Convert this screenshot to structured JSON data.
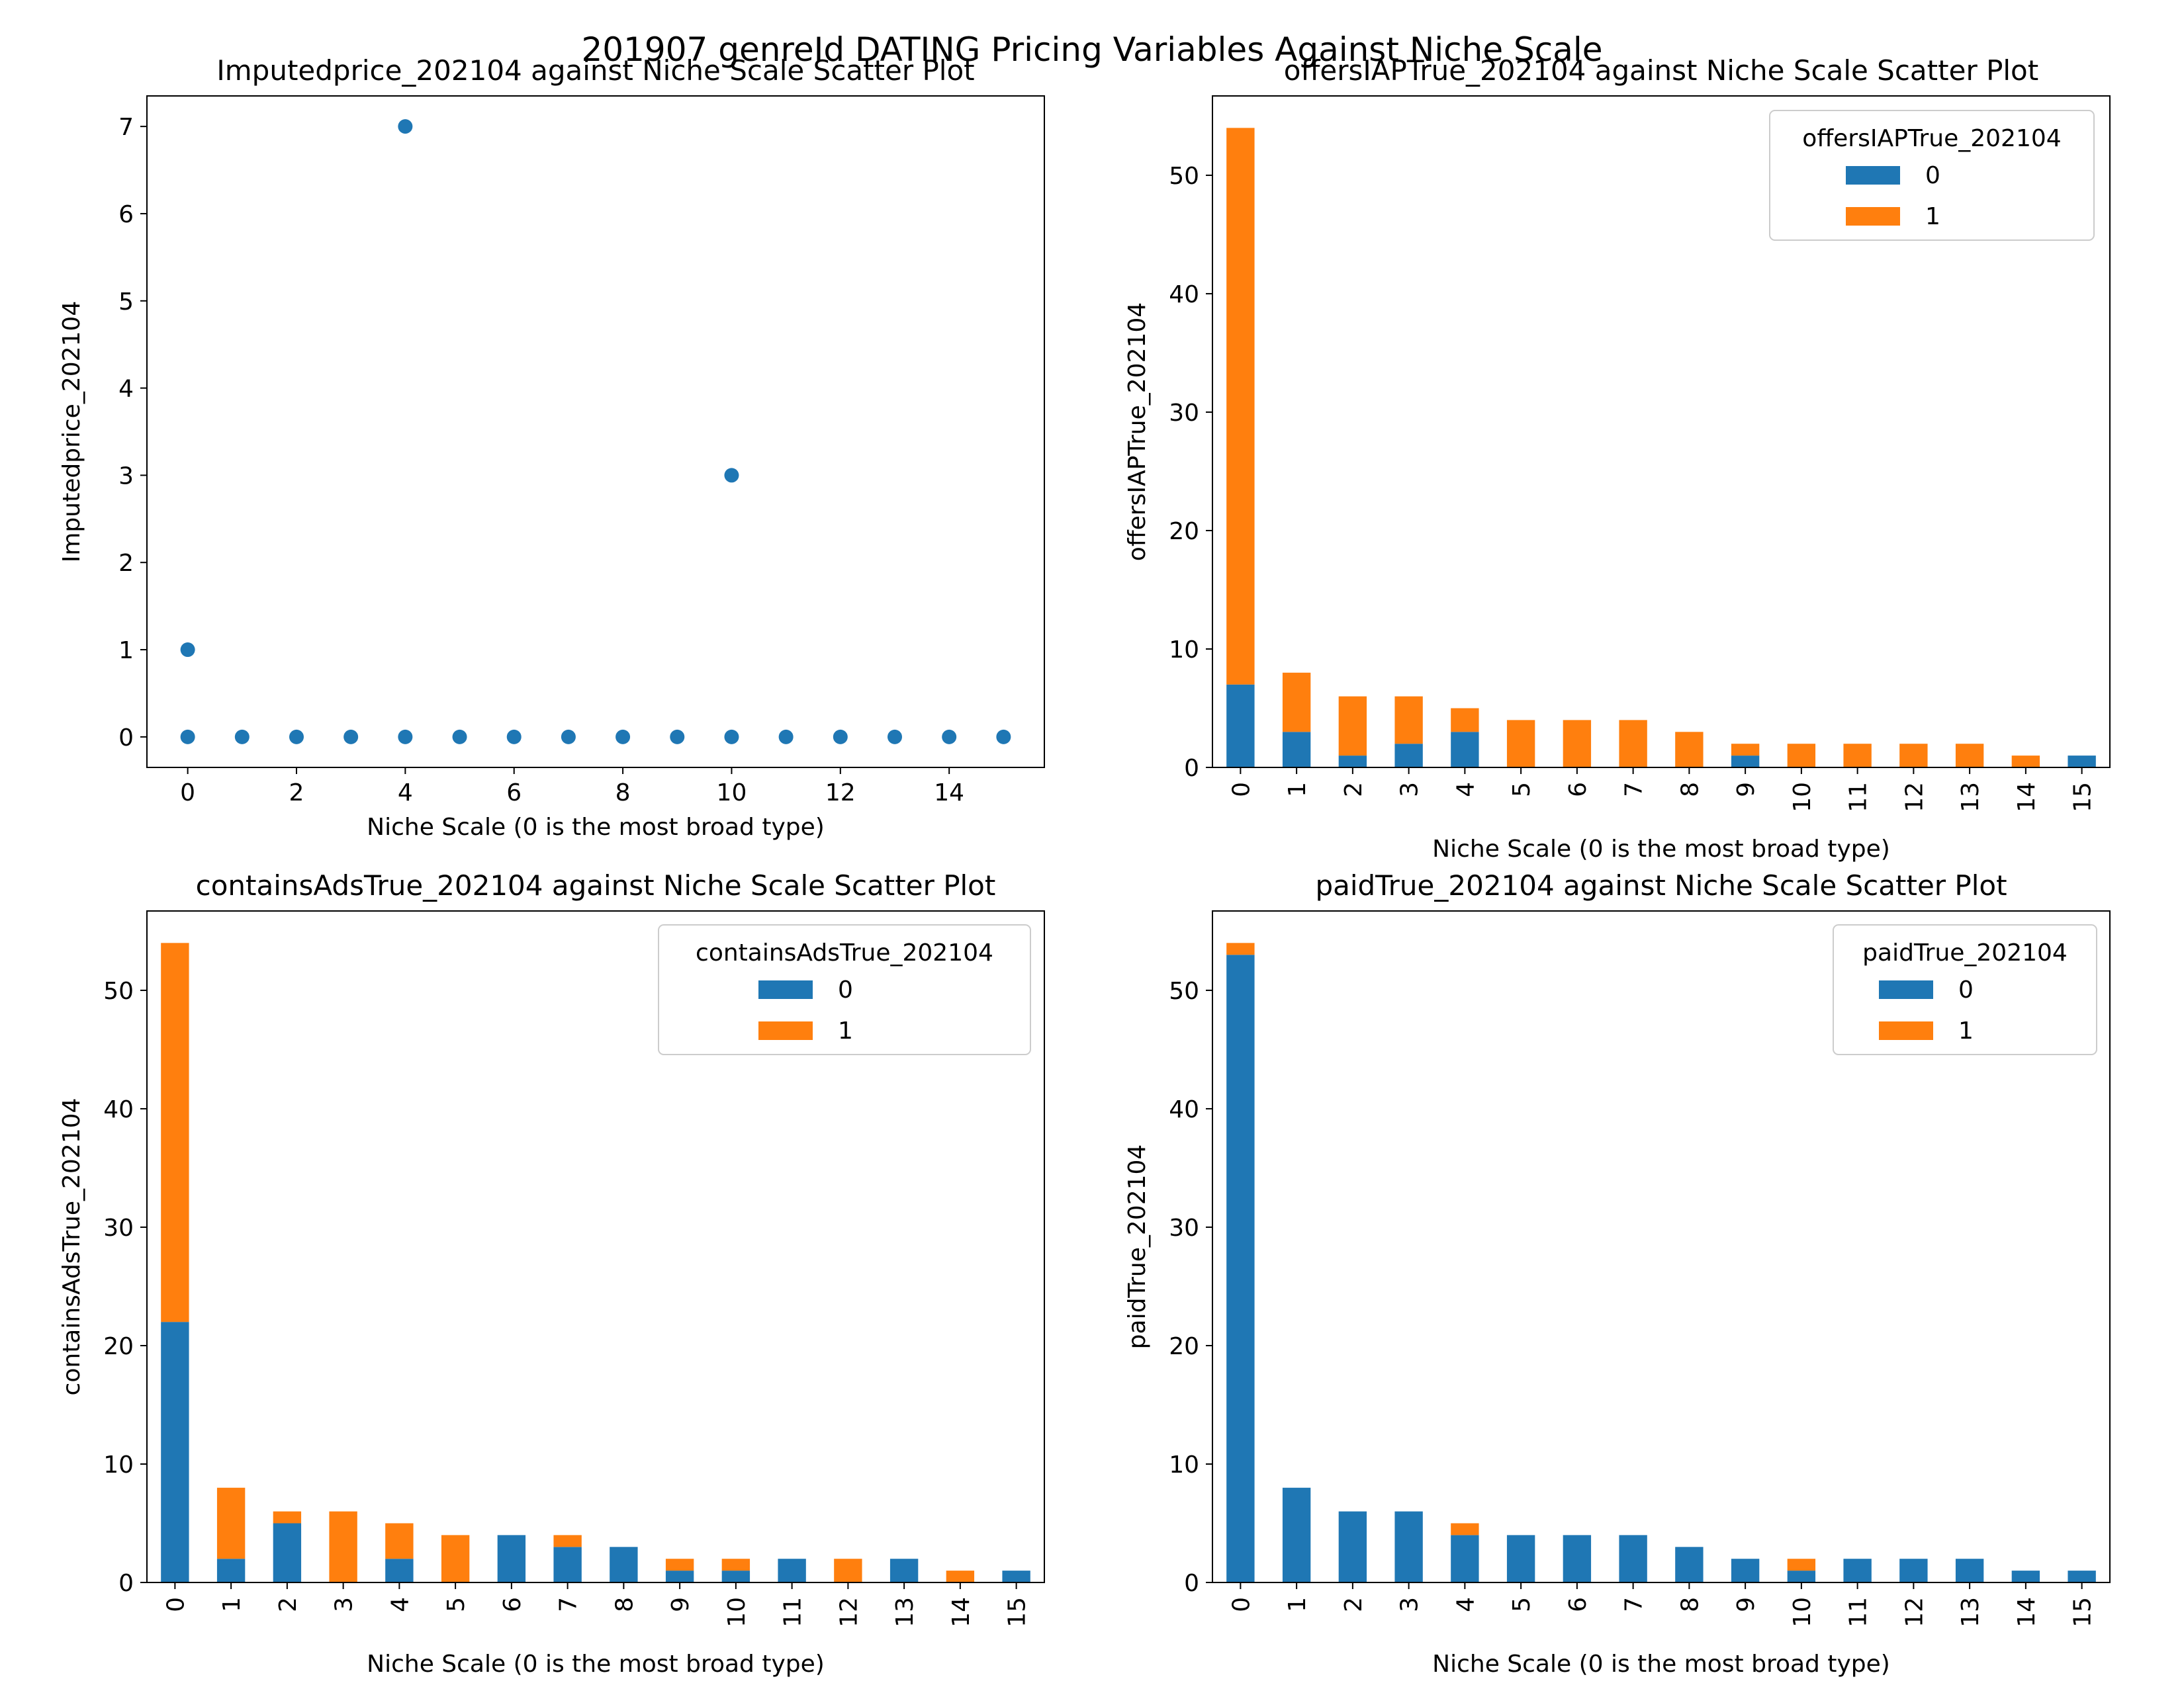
{
  "figure_title": "201907 genreId DATING Pricing Variables Against Niche Scale",
  "colors": {
    "series_0": "#1f77b4",
    "series_1": "#ff7f0e",
    "axes": "#000000",
    "legend_border": "#cccccc"
  },
  "chart_data": [
    {
      "type": "scatter",
      "title": "Imputedprice_202104 against Niche Scale Scatter Plot",
      "xlabel": "Niche Scale (0 is the most broad type)",
      "ylabel": "Imputedprice_202104",
      "xlim": [
        -0.75,
        15.75
      ],
      "ylim": [
        -0.35,
        7.35
      ],
      "xticks": [
        0,
        2,
        4,
        6,
        8,
        10,
        12,
        14
      ],
      "yticks": [
        0,
        1,
        2,
        3,
        4,
        5,
        6,
        7
      ],
      "points": [
        {
          "x": 0,
          "y": 0
        },
        {
          "x": 0,
          "y": 1
        },
        {
          "x": 1,
          "y": 0
        },
        {
          "x": 2,
          "y": 0
        },
        {
          "x": 3,
          "y": 0
        },
        {
          "x": 4,
          "y": 0
        },
        {
          "x": 4,
          "y": 7
        },
        {
          "x": 5,
          "y": 0
        },
        {
          "x": 6,
          "y": 0
        },
        {
          "x": 7,
          "y": 0
        },
        {
          "x": 8,
          "y": 0
        },
        {
          "x": 9,
          "y": 0
        },
        {
          "x": 10,
          "y": 0
        },
        {
          "x": 10,
          "y": 3
        },
        {
          "x": 11,
          "y": 0
        },
        {
          "x": 12,
          "y": 0
        },
        {
          "x": 13,
          "y": 0
        },
        {
          "x": 14,
          "y": 0
        },
        {
          "x": 15,
          "y": 0
        }
      ]
    },
    {
      "type": "bar",
      "stacked": true,
      "title": "offersIAPTrue_202104 against Niche Scale Scatter Plot",
      "xlabel": "Niche Scale (0 is the most broad type)",
      "ylabel": "offersIAPTrue_202104",
      "ylim": [
        0,
        56.7
      ],
      "yticks": [
        0,
        10,
        20,
        30,
        40,
        50
      ],
      "categories": [
        "0",
        "1",
        "2",
        "3",
        "4",
        "5",
        "6",
        "7",
        "8",
        "9",
        "10",
        "11",
        "12",
        "13",
        "14",
        "15"
      ],
      "legend": {
        "title": "offersIAPTrue_202104",
        "position": "top-right"
      },
      "series": [
        {
          "name": "0",
          "values": [
            7,
            3,
            1,
            2,
            3,
            0,
            0,
            0,
            0,
            1,
            0,
            0,
            0,
            0,
            0,
            1
          ]
        },
        {
          "name": "1",
          "values": [
            47,
            5,
            5,
            4,
            2,
            4,
            4,
            4,
            3,
            1,
            2,
            2,
            2,
            2,
            1,
            0
          ]
        }
      ]
    },
    {
      "type": "bar",
      "stacked": true,
      "title": "containsAdsTrue_202104 against Niche Scale Scatter Plot",
      "xlabel": "Niche Scale (0 is the most broad type)",
      "ylabel": "containsAdsTrue_202104",
      "ylim": [
        0,
        56.7
      ],
      "yticks": [
        0,
        10,
        20,
        30,
        40,
        50
      ],
      "categories": [
        "0",
        "1",
        "2",
        "3",
        "4",
        "5",
        "6",
        "7",
        "8",
        "9",
        "10",
        "11",
        "12",
        "13",
        "14",
        "15"
      ],
      "legend": {
        "title": "containsAdsTrue_202104",
        "position": "top-right"
      },
      "series": [
        {
          "name": "0",
          "values": [
            22,
            2,
            5,
            0,
            2,
            0,
            4,
            3,
            3,
            1,
            1,
            2,
            0,
            2,
            0,
            1
          ]
        },
        {
          "name": "1",
          "values": [
            32,
            6,
            1,
            6,
            3,
            4,
            0,
            1,
            0,
            1,
            1,
            0,
            2,
            0,
            1,
            0
          ]
        }
      ]
    },
    {
      "type": "bar",
      "stacked": true,
      "title": "paidTrue_202104 against Niche Scale Scatter Plot",
      "xlabel": "Niche Scale (0 is the most broad type)",
      "ylabel": "paidTrue_202104",
      "ylim": [
        0,
        56.7
      ],
      "yticks": [
        0,
        10,
        20,
        30,
        40,
        50
      ],
      "categories": [
        "0",
        "1",
        "2",
        "3",
        "4",
        "5",
        "6",
        "7",
        "8",
        "9",
        "10",
        "11",
        "12",
        "13",
        "14",
        "15"
      ],
      "legend": {
        "title": "paidTrue_202104",
        "position": "top-right"
      },
      "series": [
        {
          "name": "0",
          "values": [
            53,
            8,
            6,
            6,
            4,
            4,
            4,
            4,
            3,
            2,
            1,
            2,
            2,
            2,
            1,
            1
          ]
        },
        {
          "name": "1",
          "values": [
            1,
            0,
            0,
            0,
            1,
            0,
            0,
            0,
            0,
            0,
            1,
            0,
            0,
            0,
            0,
            0
          ]
        }
      ]
    }
  ]
}
